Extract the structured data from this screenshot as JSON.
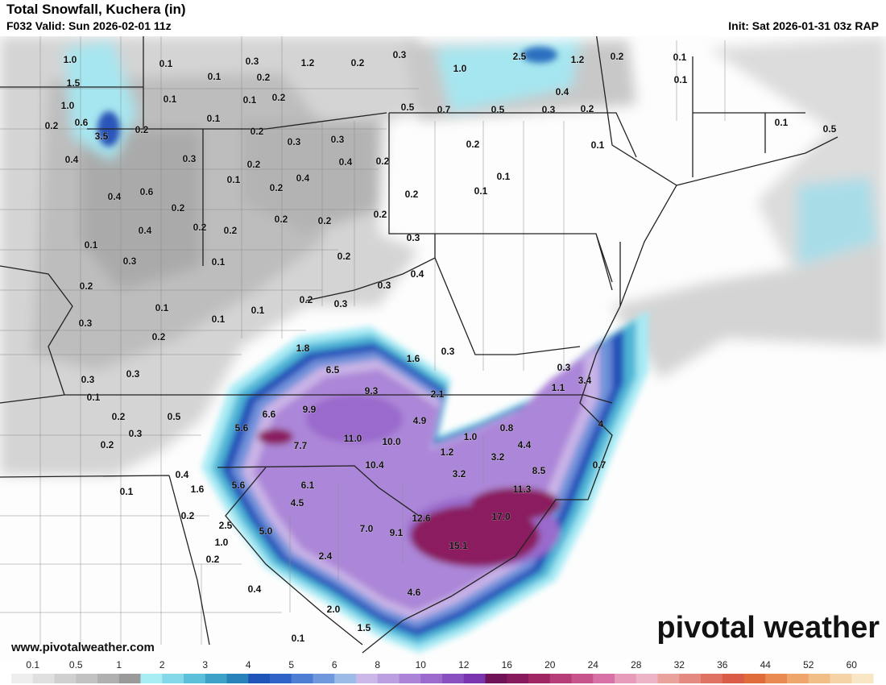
{
  "header": {
    "title": "Total Snowfall, Kuchera (in)",
    "valid": "F032 Valid: Sun 2026-02-01 11z",
    "init": "Init: Sat 2026-01-31 03z RAP"
  },
  "watermark": "www.pivotalweather.com",
  "logo": "pivotal weather",
  "snowfall_labels": [
    "1.0",
    "0.1",
    "0.3",
    "1.2",
    "0.2",
    "0.3",
    "2.5",
    "1.0",
    "1.2",
    "0.2",
    "0.1",
    "1.5",
    "0.1",
    "0.2",
    "0.1",
    "0.1",
    "0.1",
    "0.2",
    "0.4",
    "1.0",
    "0.5",
    "0.7",
    "0.5",
    "0.3",
    "0.2",
    "0.2",
    "0.6",
    "0.2",
    "0.1",
    "0.2",
    "0.1",
    "0.5",
    "3.5",
    "0.3",
    "0.3",
    "0.4",
    "0.3",
    "0.2",
    "0.4",
    "0.2",
    "0.2",
    "0.1",
    "0.1",
    "0.2",
    "0.4",
    "0.1",
    "0.1",
    "0.4",
    "0.6",
    "0.2",
    "0.2",
    "0.2",
    "0.2",
    "0.2",
    "0.4",
    "0.2",
    "0.2",
    "0.3",
    "0.1",
    "0.2",
    "0.3",
    "0.1",
    "0.4",
    "0.3",
    "0.2",
    "0.2",
    "0.3",
    "0.1",
    "0.1",
    "0.1",
    "0.3",
    "0.2",
    "1.8",
    "0.3",
    "1.6",
    "6.5",
    "0.3",
    "0.3",
    "0.3",
    "3.4",
    "9.3",
    "2.1",
    "1.1",
    "0.1",
    "0.2",
    "0.5",
    "6.6",
    "9.9",
    "4.9",
    "0.8",
    "5.6",
    "0.3",
    "11.0",
    "10.0",
    "1.0",
    "4",
    "0.2",
    "7.7",
    "1.2",
    "4.4",
    "3.2",
    "0.4",
    "10.4",
    "3.2",
    "8.5",
    "0.7",
    "1.6",
    "5.6",
    "6.1",
    "11.3",
    "0.1",
    "4.5",
    "0.2",
    "12.6",
    "17.0",
    "2.5",
    "5.0",
    "7.0",
    "9.1",
    "1.0",
    "15.1",
    "0.2",
    "2.4",
    "0.4",
    "4.6",
    "2.0",
    "1.5",
    "0.1"
  ],
  "colorbar": {
    "ticks": [
      0.1,
      0.5,
      1,
      2,
      3,
      4,
      5,
      6,
      8,
      10,
      12,
      16,
      20,
      24,
      28,
      32,
      36,
      44,
      52,
      60
    ],
    "colors": [
      "#eeeeee",
      "#e0e0e0",
      "#d0d0d0",
      "#c2c2c2",
      "#b0b0b0",
      "#9a9a9a",
      "#a8ecf4",
      "#84d8ea",
      "#5cc0da",
      "#3ea2c8",
      "#2a82ba",
      "#1f55b8",
      "#2f63c8",
      "#4d7ed4",
      "#7098dc",
      "#9cbbe6",
      "#cbb8e8",
      "#bc9fe0",
      "#ab84d8",
      "#9b6acc",
      "#8a50c0",
      "#7934ae",
      "#6f1257",
      "#861a5c",
      "#a02663",
      "#b63d78",
      "#c8548c",
      "#d872a6",
      "#e79cbb",
      "#edb4c8",
      "#eaa29c",
      "#e48a80",
      "#df7262",
      "#da5b46",
      "#e06c3c",
      "#e88a52",
      "#eea66c",
      "#f2be88",
      "#f5d3a6",
      "#f8e6c4"
    ]
  }
}
